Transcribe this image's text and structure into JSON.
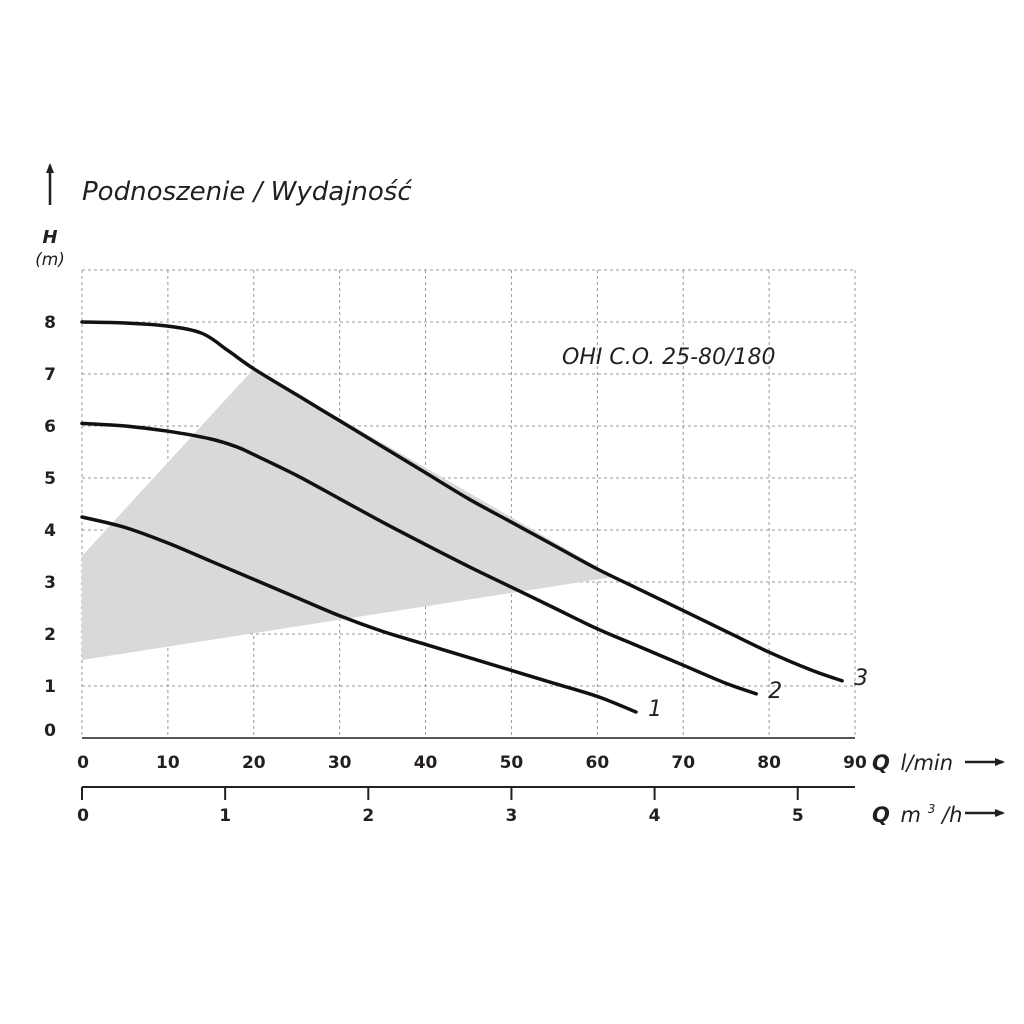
{
  "chart_data": {
    "type": "line",
    "title": "Podnoszenie / Wydajność",
    "model": "OHI C.O. 25-80/180",
    "y_axis": {
      "symbol": "H",
      "unit": "(m)",
      "ylim": [
        0,
        9
      ],
      "ticks": [
        0,
        1,
        2,
        3,
        4,
        5,
        6,
        7,
        8
      ]
    },
    "x_axis_primary": {
      "symbol": "Q",
      "unit": "l/min",
      "xlim": [
        0,
        90
      ],
      "ticks": [
        0,
        10,
        20,
        30,
        40,
        50,
        60,
        70,
        80,
        90
      ]
    },
    "x_axis_secondary": {
      "symbol": "Q",
      "unit": "m",
      "superscript": "3",
      "unit_suffix": "/h",
      "ticks": [
        0,
        1,
        2,
        3,
        4,
        5
      ]
    },
    "grid": true,
    "series": [
      {
        "name": "1",
        "x": [
          0,
          5,
          10,
          15,
          20,
          25,
          30,
          35,
          40,
          45,
          50,
          55,
          60,
          64.5
        ],
        "y": [
          4.25,
          4.05,
          3.75,
          3.4,
          3.05,
          2.7,
          2.35,
          2.05,
          1.8,
          1.55,
          1.3,
          1.05,
          0.8,
          0.5
        ]
      },
      {
        "name": "2",
        "x": [
          0,
          5,
          10,
          15,
          18,
          20,
          25,
          30,
          35,
          40,
          45,
          50,
          55,
          60,
          65,
          70,
          75,
          78.5
        ],
        "y": [
          6.05,
          6.0,
          5.9,
          5.75,
          5.6,
          5.45,
          5.05,
          4.6,
          4.15,
          3.72,
          3.3,
          2.9,
          2.5,
          2.1,
          1.75,
          1.4,
          1.05,
          0.85
        ]
      },
      {
        "name": "3",
        "x": [
          0,
          5,
          10,
          14,
          17,
          20,
          25,
          30,
          35,
          40,
          45,
          50,
          55,
          60,
          65,
          70,
          75,
          80,
          85,
          88.5
        ],
        "y": [
          8.0,
          7.98,
          7.92,
          7.78,
          7.45,
          7.1,
          6.6,
          6.1,
          5.6,
          5.1,
          4.6,
          4.15,
          3.7,
          3.25,
          2.85,
          2.45,
          2.05,
          1.65,
          1.3,
          1.1
        ]
      }
    ],
    "shaded_region": {
      "x": [
        0,
        20,
        62,
        0
      ],
      "y": [
        3.5,
        7.1,
        3.1,
        1.5
      ]
    }
  }
}
